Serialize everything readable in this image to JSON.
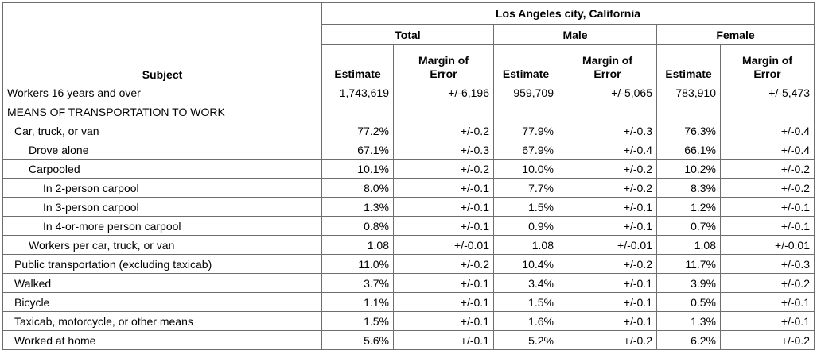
{
  "header": {
    "geography": "Los Angeles city, California",
    "subject_label": "Subject",
    "groups": [
      "Total",
      "Male",
      "Female"
    ],
    "estimate_label": "Estimate",
    "moe_label_line1": "Margin of",
    "moe_label_line2": "Error"
  },
  "rows": [
    {
      "label": "Workers 16 years and over",
      "indent": 0,
      "values": [
        "1,743,619",
        "+/-6,196",
        "959,709",
        "+/-5,065",
        "783,910",
        "+/-5,473"
      ]
    },
    {
      "label": "MEANS OF TRANSPORTATION TO WORK",
      "indent": 0,
      "values": [
        "",
        "",
        "",
        "",
        "",
        ""
      ]
    },
    {
      "label": "Car, truck, or van",
      "indent": 1,
      "values": [
        "77.2%",
        "+/-0.2",
        "77.9%",
        "+/-0.3",
        "76.3%",
        "+/-0.4"
      ]
    },
    {
      "label": "Drove alone",
      "indent": 2,
      "values": [
        "67.1%",
        "+/-0.3",
        "67.9%",
        "+/-0.4",
        "66.1%",
        "+/-0.4"
      ]
    },
    {
      "label": "Carpooled",
      "indent": 2,
      "values": [
        "10.1%",
        "+/-0.2",
        "10.0%",
        "+/-0.2",
        "10.2%",
        "+/-0.2"
      ]
    },
    {
      "label": "In 2-person carpool",
      "indent": 3,
      "values": [
        "8.0%",
        "+/-0.1",
        "7.7%",
        "+/-0.2",
        "8.3%",
        "+/-0.2"
      ]
    },
    {
      "label": "In 3-person carpool",
      "indent": 3,
      "values": [
        "1.3%",
        "+/-0.1",
        "1.5%",
        "+/-0.1",
        "1.2%",
        "+/-0.1"
      ]
    },
    {
      "label": "In 4-or-more person carpool",
      "indent": 3,
      "values": [
        "0.8%",
        "+/-0.1",
        "0.9%",
        "+/-0.1",
        "0.7%",
        "+/-0.1"
      ]
    },
    {
      "label": "Workers per car, truck, or van",
      "indent": 2,
      "values": [
        "1.08",
        "+/-0.01",
        "1.08",
        "+/-0.01",
        "1.08",
        "+/-0.01"
      ]
    },
    {
      "label": "Public transportation (excluding taxicab)",
      "indent": 1,
      "values": [
        "11.0%",
        "+/-0.2",
        "10.4%",
        "+/-0.2",
        "11.7%",
        "+/-0.3"
      ]
    },
    {
      "label": "Walked",
      "indent": 1,
      "values": [
        "3.7%",
        "+/-0.1",
        "3.4%",
        "+/-0.1",
        "3.9%",
        "+/-0.2"
      ]
    },
    {
      "label": "Bicycle",
      "indent": 1,
      "values": [
        "1.1%",
        "+/-0.1",
        "1.5%",
        "+/-0.1",
        "0.5%",
        "+/-0.1"
      ]
    },
    {
      "label": "Taxicab, motorcycle, or other means",
      "indent": 1,
      "values": [
        "1.5%",
        "+/-0.1",
        "1.6%",
        "+/-0.1",
        "1.3%",
        "+/-0.1"
      ]
    },
    {
      "label": "Worked at home",
      "indent": 1,
      "values": [
        "5.6%",
        "+/-0.1",
        "5.2%",
        "+/-0.2",
        "6.2%",
        "+/-0.2"
      ]
    }
  ]
}
